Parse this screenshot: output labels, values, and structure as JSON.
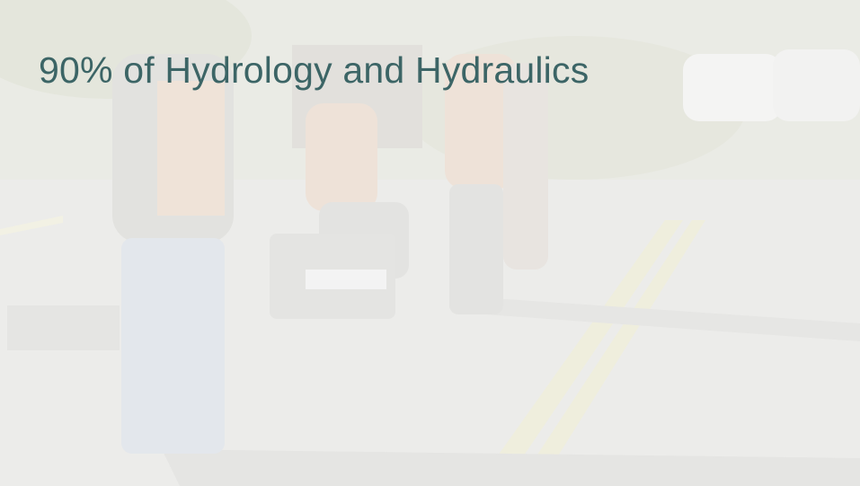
{
  "slide": {
    "title": "90% of Hydrology and Hydraulics"
  }
}
